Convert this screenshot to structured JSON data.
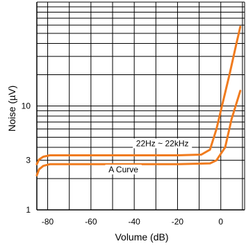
{
  "chart_data": {
    "type": "line",
    "xlabel": "Volume  (dB)",
    "ylabel": "Noise (µV)",
    "xlim": [
      -85,
      11
    ],
    "ylim": [
      1,
      100
    ],
    "y_scale": "log",
    "grid": true,
    "x_ticks": [
      -80,
      -60,
      -40,
      -20,
      0
    ],
    "x_tick_labels": [
      "-80",
      "-60",
      "-40",
      "-20",
      "0"
    ],
    "y_tick_labels": [
      {
        "value": 1,
        "label": "1"
      },
      {
        "value": 3,
        "label": "3"
      },
      {
        "value": 10,
        "label": "10"
      }
    ],
    "line_color": "#f07b1e",
    "series": [
      {
        "x": [
          -85,
          -84,
          -82,
          -79,
          -60,
          -40,
          -20,
          -9,
          -5,
          -2,
          1,
          4,
          7,
          9
        ],
        "y": [
          2.75,
          3.05,
          3.25,
          3.35,
          3.35,
          3.35,
          3.35,
          3.4,
          3.8,
          6,
          11,
          20,
          38,
          58
        ]
      },
      {
        "x": [
          -85,
          -84,
          -82,
          -79,
          -60,
          -40,
          -20,
          -5,
          -2,
          2,
          5,
          9
        ],
        "y": [
          2.15,
          2.45,
          2.65,
          2.75,
          2.75,
          2.75,
          2.75,
          2.8,
          3.0,
          4.0,
          7.5,
          14
        ]
      }
    ],
    "annotations": [
      {
        "text": "22Hz ~ 22kHz",
        "x": -27,
        "y": 4.1
      },
      {
        "text": "A Curve",
        "x": -45,
        "y": 2.3
      }
    ]
  }
}
